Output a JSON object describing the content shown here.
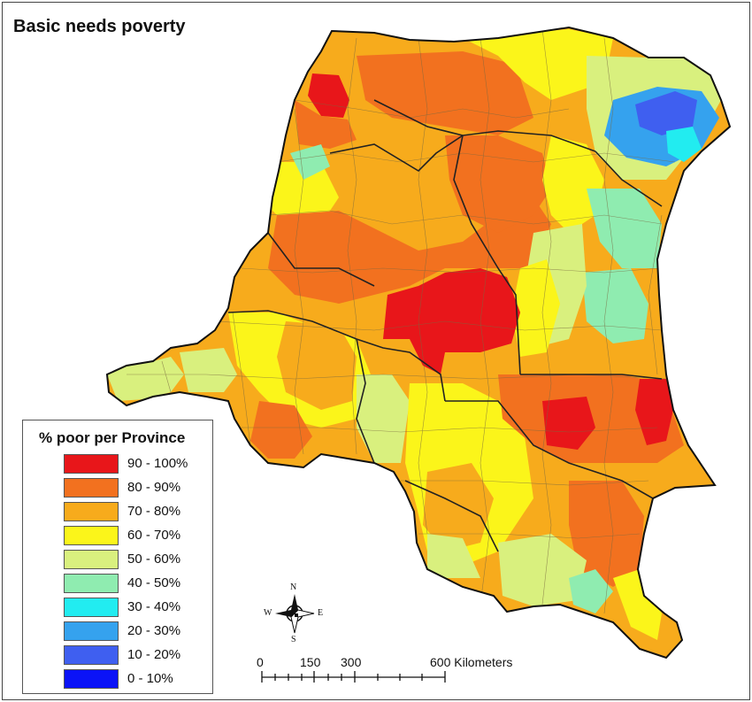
{
  "title": "Basic needs poverty",
  "legend": {
    "title": "% poor per Province",
    "items": [
      {
        "label": "90 - 100%",
        "color": "#e8161a"
      },
      {
        "label": "80 - 90%",
        "color": "#f2711f"
      },
      {
        "label": "70 - 80%",
        "color": "#f7ab1c"
      },
      {
        "label": "60 - 70%",
        "color": "#fbf51a"
      },
      {
        "label": "50 - 60%",
        "color": "#d9f07e"
      },
      {
        "label": "40 - 50%",
        "color": "#8fecb0"
      },
      {
        "label": "30 - 40%",
        "color": "#22ecf0"
      },
      {
        "label": "20 - 30%",
        "color": "#35a2ee"
      },
      {
        "label": "10 - 20%",
        "color": "#3f5ff0"
      },
      {
        "label": "0 - 10%",
        "color": "#0b13f7"
      }
    ]
  },
  "compass": {
    "n": "N",
    "s": "S",
    "e": "E",
    "w": "W"
  },
  "scale_bar": {
    "ticks": [
      "0",
      "150",
      "300",
      "600 Kilometers"
    ]
  }
}
